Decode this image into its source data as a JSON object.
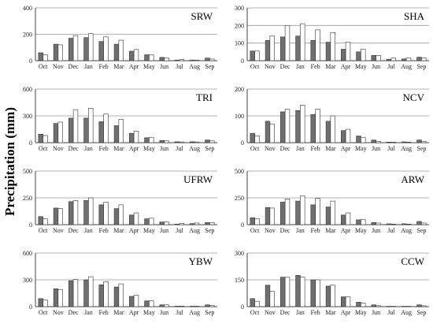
{
  "ylabel": "Precipitation (mm)",
  "chart_data": [
    {
      "type": "bar",
      "title": "SRW",
      "categories": [
        "Oct",
        "Nov",
        "Dec",
        "Jan",
        "Feb",
        "Mar",
        "Apr",
        "May",
        "Jun",
        "Jul",
        "Aug",
        "Sep"
      ],
      "yticks": [
        0,
        200,
        400
      ],
      "ylim": [
        0,
        400
      ],
      "grid": "horizontal",
      "series": [
        {
          "values": [
            60,
            125,
            170,
            175,
            145,
            125,
            72,
            45,
            25,
            5,
            5,
            20
          ]
        },
        {
          "values": [
            45,
            120,
            190,
            205,
            180,
            155,
            85,
            45,
            20,
            8,
            5,
            12
          ]
        }
      ]
    },
    {
      "type": "bar",
      "title": "SHA",
      "categories": [
        "Oct",
        "Nov",
        "Dec",
        "Jan",
        "Feb",
        "Mar",
        "Apr",
        "May",
        "Jun",
        "Jul",
        "Aug",
        "Sep"
      ],
      "yticks": [
        0,
        100,
        200,
        300
      ],
      "ylim": [
        0,
        300
      ],
      "grid": "horizontal",
      "series": [
        {
          "values": [
            55,
            115,
            135,
            140,
            115,
            105,
            65,
            50,
            30,
            8,
            10,
            20
          ]
        },
        {
          "values": [
            55,
            140,
            200,
            210,
            175,
            160,
            105,
            65,
            30,
            15,
            15,
            15
          ]
        }
      ]
    },
    {
      "type": "bar",
      "title": "TRI",
      "categories": [
        "Oct",
        "Nov",
        "Dec",
        "Jan",
        "Feb",
        "Mar",
        "Apr",
        "May",
        "Jun",
        "Jul",
        "Aug",
        "Sep"
      ],
      "yticks": [
        0,
        300,
        600
      ],
      "ylim": [
        0,
        600
      ],
      "grid": "horizontal",
      "series": [
        {
          "values": [
            95,
            215,
            275,
            275,
            235,
            190,
            105,
            55,
            25,
            10,
            10,
            30
          ]
        },
        {
          "values": [
            80,
            230,
            370,
            385,
            320,
            260,
            130,
            60,
            20,
            8,
            8,
            20
          ]
        }
      ]
    },
    {
      "type": "bar",
      "title": "NCV",
      "categories": [
        "Oct",
        "Nov",
        "Dec",
        "Jan",
        "Feb",
        "Mar",
        "Apr",
        "May",
        "Jun",
        "Jul",
        "Aug",
        "Sep"
      ],
      "yticks": [
        0,
        100,
        200
      ],
      "ylim": [
        0,
        200
      ],
      "grid": "horizontal",
      "series": [
        {
          "values": [
            35,
            80,
            115,
            120,
            105,
            80,
            45,
            25,
            10,
            2,
            3,
            10
          ]
        },
        {
          "values": [
            25,
            70,
            125,
            140,
            125,
            100,
            50,
            20,
            5,
            2,
            2,
            5
          ]
        }
      ]
    },
    {
      "type": "bar",
      "title": "UFRW",
      "categories": [
        "Oct",
        "Nov",
        "Dec",
        "Jan",
        "Feb",
        "Mar",
        "Apr",
        "May",
        "Jun",
        "Jul",
        "Aug",
        "Sep"
      ],
      "yticks": [
        0,
        250,
        500
      ],
      "ylim": [
        0,
        500
      ],
      "grid": "horizontal",
      "series": [
        {
          "values": [
            75,
            155,
            215,
            225,
            185,
            150,
            90,
            55,
            25,
            5,
            10,
            20
          ]
        },
        {
          "values": [
            55,
            150,
            225,
            250,
            210,
            185,
            110,
            60,
            25,
            10,
            15,
            20
          ]
        }
      ]
    },
    {
      "type": "bar",
      "title": "ARW",
      "categories": [
        "Oct",
        "Nov",
        "Dec",
        "Jan",
        "Feb",
        "Mar",
        "Apr",
        "May",
        "Jun",
        "Jul",
        "Aug",
        "Sep"
      ],
      "yticks": [
        0,
        250,
        500
      ],
      "ylim": [
        0,
        500
      ],
      "grid": "horizontal",
      "series": [
        {
          "values": [
            65,
            160,
            210,
            220,
            185,
            165,
            90,
            45,
            20,
            8,
            8,
            30
          ]
        },
        {
          "values": [
            55,
            155,
            240,
            270,
            245,
            220,
            110,
            50,
            15,
            5,
            5,
            15
          ]
        }
      ]
    },
    {
      "type": "bar",
      "title": "YBW",
      "categories": [
        "Oct",
        "Nov",
        "Dec",
        "Jan",
        "Feb",
        "Mar",
        "Apr",
        "May",
        "Jun",
        "Jul",
        "Aug",
        "Sep"
      ],
      "yticks": [
        0,
        300,
        600
      ],
      "ylim": [
        0,
        600
      ],
      "grid": "horizontal",
      "series": [
        {
          "values": [
            90,
            200,
            290,
            300,
            245,
            220,
            115,
            65,
            20,
            5,
            5,
            20
          ]
        },
        {
          "values": [
            75,
            190,
            305,
            335,
            280,
            255,
            130,
            65,
            20,
            5,
            5,
            15
          ]
        }
      ]
    },
    {
      "type": "bar",
      "title": "CCW",
      "categories": [
        "Oct",
        "Nov",
        "Dec",
        "Jan",
        "Feb",
        "Mar",
        "Apr",
        "May",
        "Jun",
        "Jul",
        "Aug",
        "Sep"
      ],
      "yticks": [
        0,
        150,
        300
      ],
      "ylim": [
        0,
        300
      ],
      "grid": "horizontal",
      "series": [
        {
          "values": [
            45,
            120,
            165,
            175,
            150,
            115,
            55,
            25,
            10,
            2,
            2,
            10
          ]
        },
        {
          "values": [
            30,
            85,
            165,
            165,
            150,
            120,
            55,
            20,
            5,
            2,
            2,
            5
          ]
        }
      ]
    }
  ]
}
